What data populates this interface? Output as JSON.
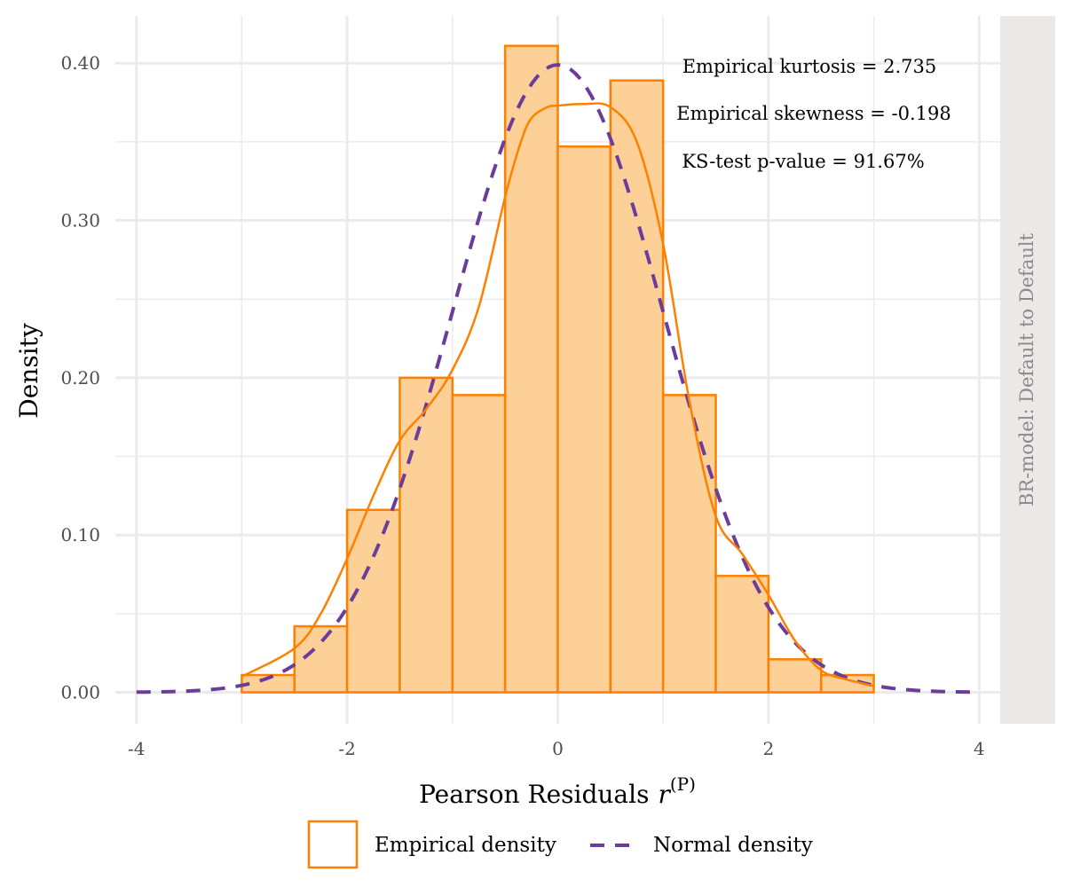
{
  "chart_data": {
    "type": "bar",
    "subtype": "histogram-with-density",
    "facet_label": "BR-model: Default to Default",
    "xlabel": "Pearson Residuals",
    "xlabel_math": "r",
    "xlabel_superscript": "(P)",
    "ylabel": "Density",
    "xlim": [
      -4.2,
      4.2
    ],
    "ylim": [
      -0.02,
      0.43
    ],
    "x_ticks": [
      -4,
      -2,
      0,
      2,
      4
    ],
    "x_tick_labels": [
      "-4",
      "-2",
      "0",
      "2",
      "4"
    ],
    "y_ticks": [
      0,
      0.1,
      0.2,
      0.3,
      0.4
    ],
    "y_tick_labels": [
      "0.00",
      "0.10",
      "0.20",
      "0.30",
      "0.40"
    ],
    "grid": true,
    "bins": [
      {
        "x0": -3.0,
        "x1": -2.5,
        "density": 0.011
      },
      {
        "x0": -2.5,
        "x1": -2.0,
        "density": 0.042
      },
      {
        "x0": -2.0,
        "x1": -1.5,
        "density": 0.116
      },
      {
        "x0": -1.5,
        "x1": -1.0,
        "density": 0.2
      },
      {
        "x0": -1.0,
        "x1": -0.5,
        "density": 0.189
      },
      {
        "x0": -0.5,
        "x1": 0.0,
        "density": 0.411
      },
      {
        "x0": 0.0,
        "x1": 0.5,
        "density": 0.347
      },
      {
        "x0": 0.5,
        "x1": 1.0,
        "density": 0.389
      },
      {
        "x0": 1.0,
        "x1": 1.5,
        "density": 0.189
      },
      {
        "x0": 1.5,
        "x1": 2.0,
        "density": 0.074
      },
      {
        "x0": 2.0,
        "x1": 2.5,
        "density": 0.021
      },
      {
        "x0": 2.5,
        "x1": 3.0,
        "density": 0.011
      }
    ],
    "empirical_density": {
      "name": "Empirical density",
      "x": [
        -3.0,
        -2.5,
        -2.25,
        -2.0,
        -1.75,
        -1.5,
        -1.25,
        -1.0,
        -0.75,
        -0.5,
        -0.35,
        -0.25,
        -0.1,
        0.0,
        0.25,
        0.5,
        0.75,
        1.0,
        1.25,
        1.5,
        1.75,
        2.0,
        2.25,
        2.5,
        2.75,
        3.0
      ],
      "y": [
        0.01,
        0.028,
        0.05,
        0.085,
        0.125,
        0.16,
        0.18,
        0.205,
        0.245,
        0.315,
        0.35,
        0.365,
        0.372,
        0.373,
        0.374,
        0.372,
        0.35,
        0.285,
        0.185,
        0.112,
        0.088,
        0.062,
        0.033,
        0.014,
        0.008,
        0.004
      ]
    },
    "normal_density": {
      "name": "Normal density",
      "mean": 0,
      "sd": 1,
      "x_range": [
        -4,
        4
      ]
    },
    "annotations": [
      "Empirical kurtosis = 2.735",
      "Empirical skewness = -0.198",
      "KS-test p-value = 91.67%"
    ],
    "legend": {
      "placement": "bottom",
      "entries": [
        "Empirical density",
        "Normal density"
      ]
    },
    "colors": {
      "bar_fill": "#fcd096",
      "bar_stroke": "#ff8000",
      "empirical_line": "#ff8000",
      "normal_line": "#6a3d9a",
      "grid": "#ebebeb",
      "strip_bg": "#ebe9e8",
      "strip_text": "#8a8a8a"
    }
  }
}
